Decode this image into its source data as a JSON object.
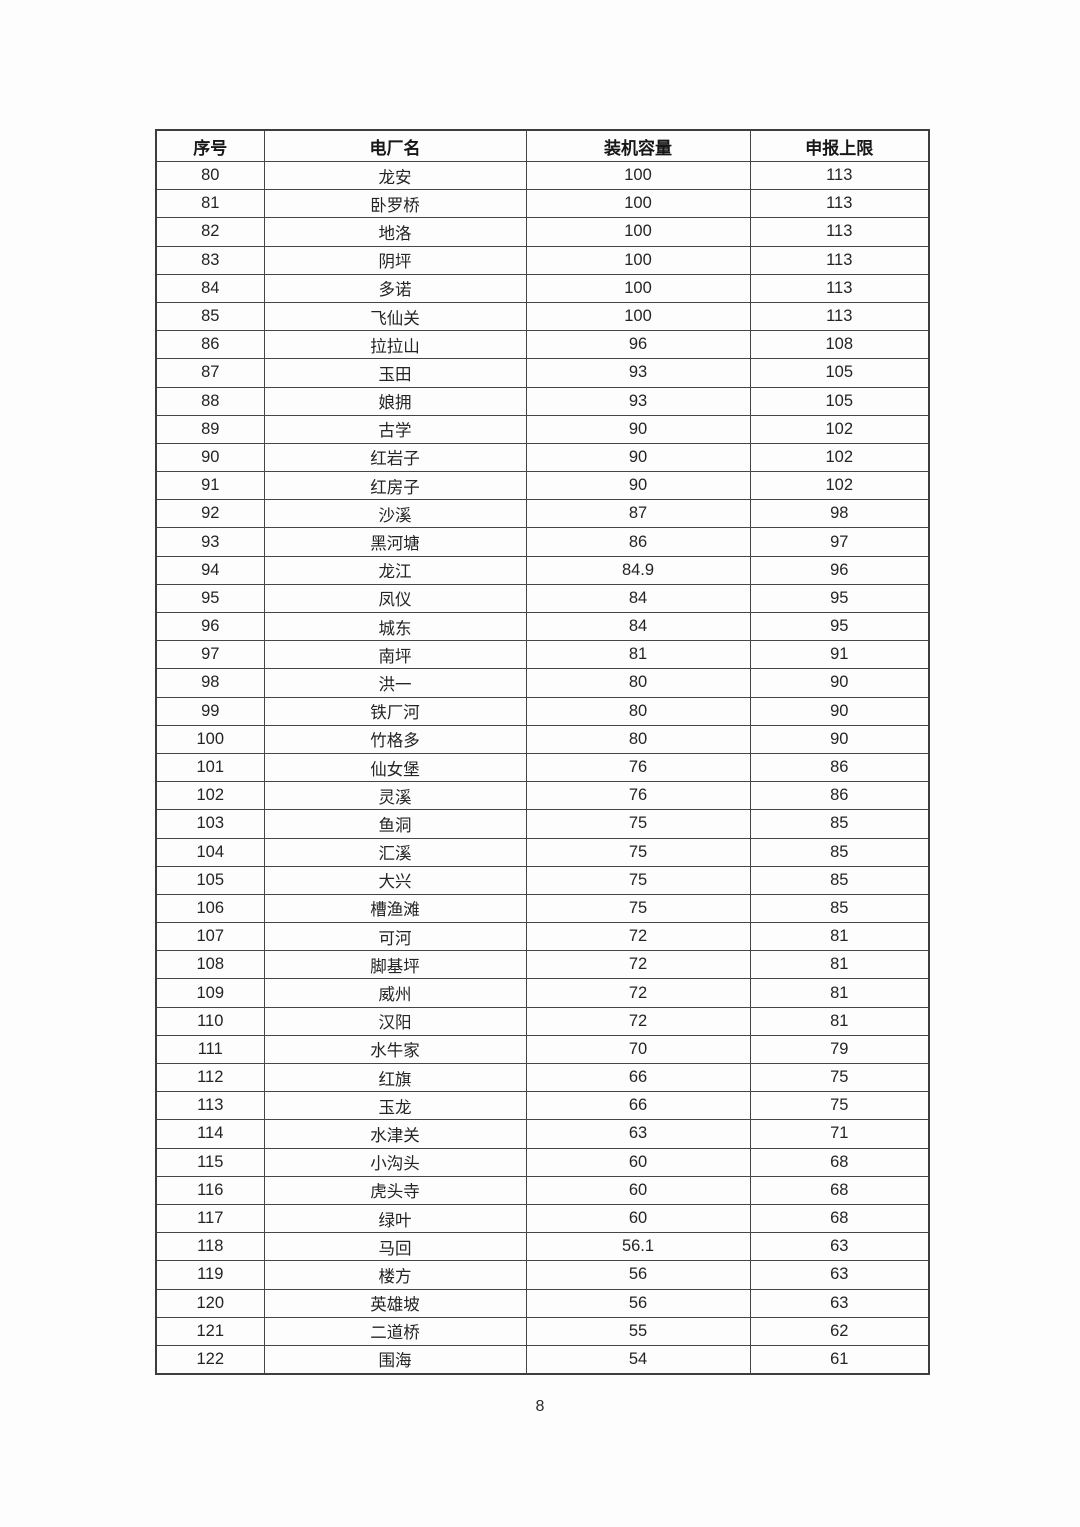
{
  "page": {
    "number": "8"
  },
  "table": {
    "headers": [
      "序号",
      "电厂名",
      "装机容量",
      "申报上限"
    ],
    "rows": [
      [
        "80",
        "龙安",
        "100",
        "113"
      ],
      [
        "81",
        "卧罗桥",
        "100",
        "113"
      ],
      [
        "82",
        "地洛",
        "100",
        "113"
      ],
      [
        "83",
        "阴坪",
        "100",
        "113"
      ],
      [
        "84",
        "多诺",
        "100",
        "113"
      ],
      [
        "85",
        "飞仙关",
        "100",
        "113"
      ],
      [
        "86",
        "拉拉山",
        "96",
        "108"
      ],
      [
        "87",
        "玉田",
        "93",
        "105"
      ],
      [
        "88",
        "娘拥",
        "93",
        "105"
      ],
      [
        "89",
        "古学",
        "90",
        "102"
      ],
      [
        "90",
        "红岩子",
        "90",
        "102"
      ],
      [
        "91",
        "红房子",
        "90",
        "102"
      ],
      [
        "92",
        "沙溪",
        "87",
        "98"
      ],
      [
        "93",
        "黑河塘",
        "86",
        "97"
      ],
      [
        "94",
        "龙江",
        "84.9",
        "96"
      ],
      [
        "95",
        "凤仪",
        "84",
        "95"
      ],
      [
        "96",
        "城东",
        "84",
        "95"
      ],
      [
        "97",
        "南坪",
        "81",
        "91"
      ],
      [
        "98",
        "洪一",
        "80",
        "90"
      ],
      [
        "99",
        "铁厂河",
        "80",
        "90"
      ],
      [
        "100",
        "竹格多",
        "80",
        "90"
      ],
      [
        "101",
        "仙女堡",
        "76",
        "86"
      ],
      [
        "102",
        "灵溪",
        "76",
        "86"
      ],
      [
        "103",
        "鱼洞",
        "75",
        "85"
      ],
      [
        "104",
        "汇溪",
        "75",
        "85"
      ],
      [
        "105",
        "大兴",
        "75",
        "85"
      ],
      [
        "106",
        "槽渔滩",
        "75",
        "85"
      ],
      [
        "107",
        "可河",
        "72",
        "81"
      ],
      [
        "108",
        "脚基坪",
        "72",
        "81"
      ],
      [
        "109",
        "威州",
        "72",
        "81"
      ],
      [
        "110",
        "汉阳",
        "72",
        "81"
      ],
      [
        "111",
        "水牛家",
        "70",
        "79"
      ],
      [
        "112",
        "红旗",
        "66",
        "75"
      ],
      [
        "113",
        "玉龙",
        "66",
        "75"
      ],
      [
        "114",
        "水津关",
        "63",
        "71"
      ],
      [
        "115",
        "小沟头",
        "60",
        "68"
      ],
      [
        "116",
        "虎头寺",
        "60",
        "68"
      ],
      [
        "117",
        "绿叶",
        "60",
        "68"
      ],
      [
        "118",
        "马回",
        "56.1",
        "63"
      ],
      [
        "119",
        "楼方",
        "56",
        "63"
      ],
      [
        "120",
        "英雄坡",
        "56",
        "63"
      ],
      [
        "121",
        "二道桥",
        "55",
        "62"
      ],
      [
        "122",
        "围海",
        "54",
        "61"
      ]
    ]
  }
}
